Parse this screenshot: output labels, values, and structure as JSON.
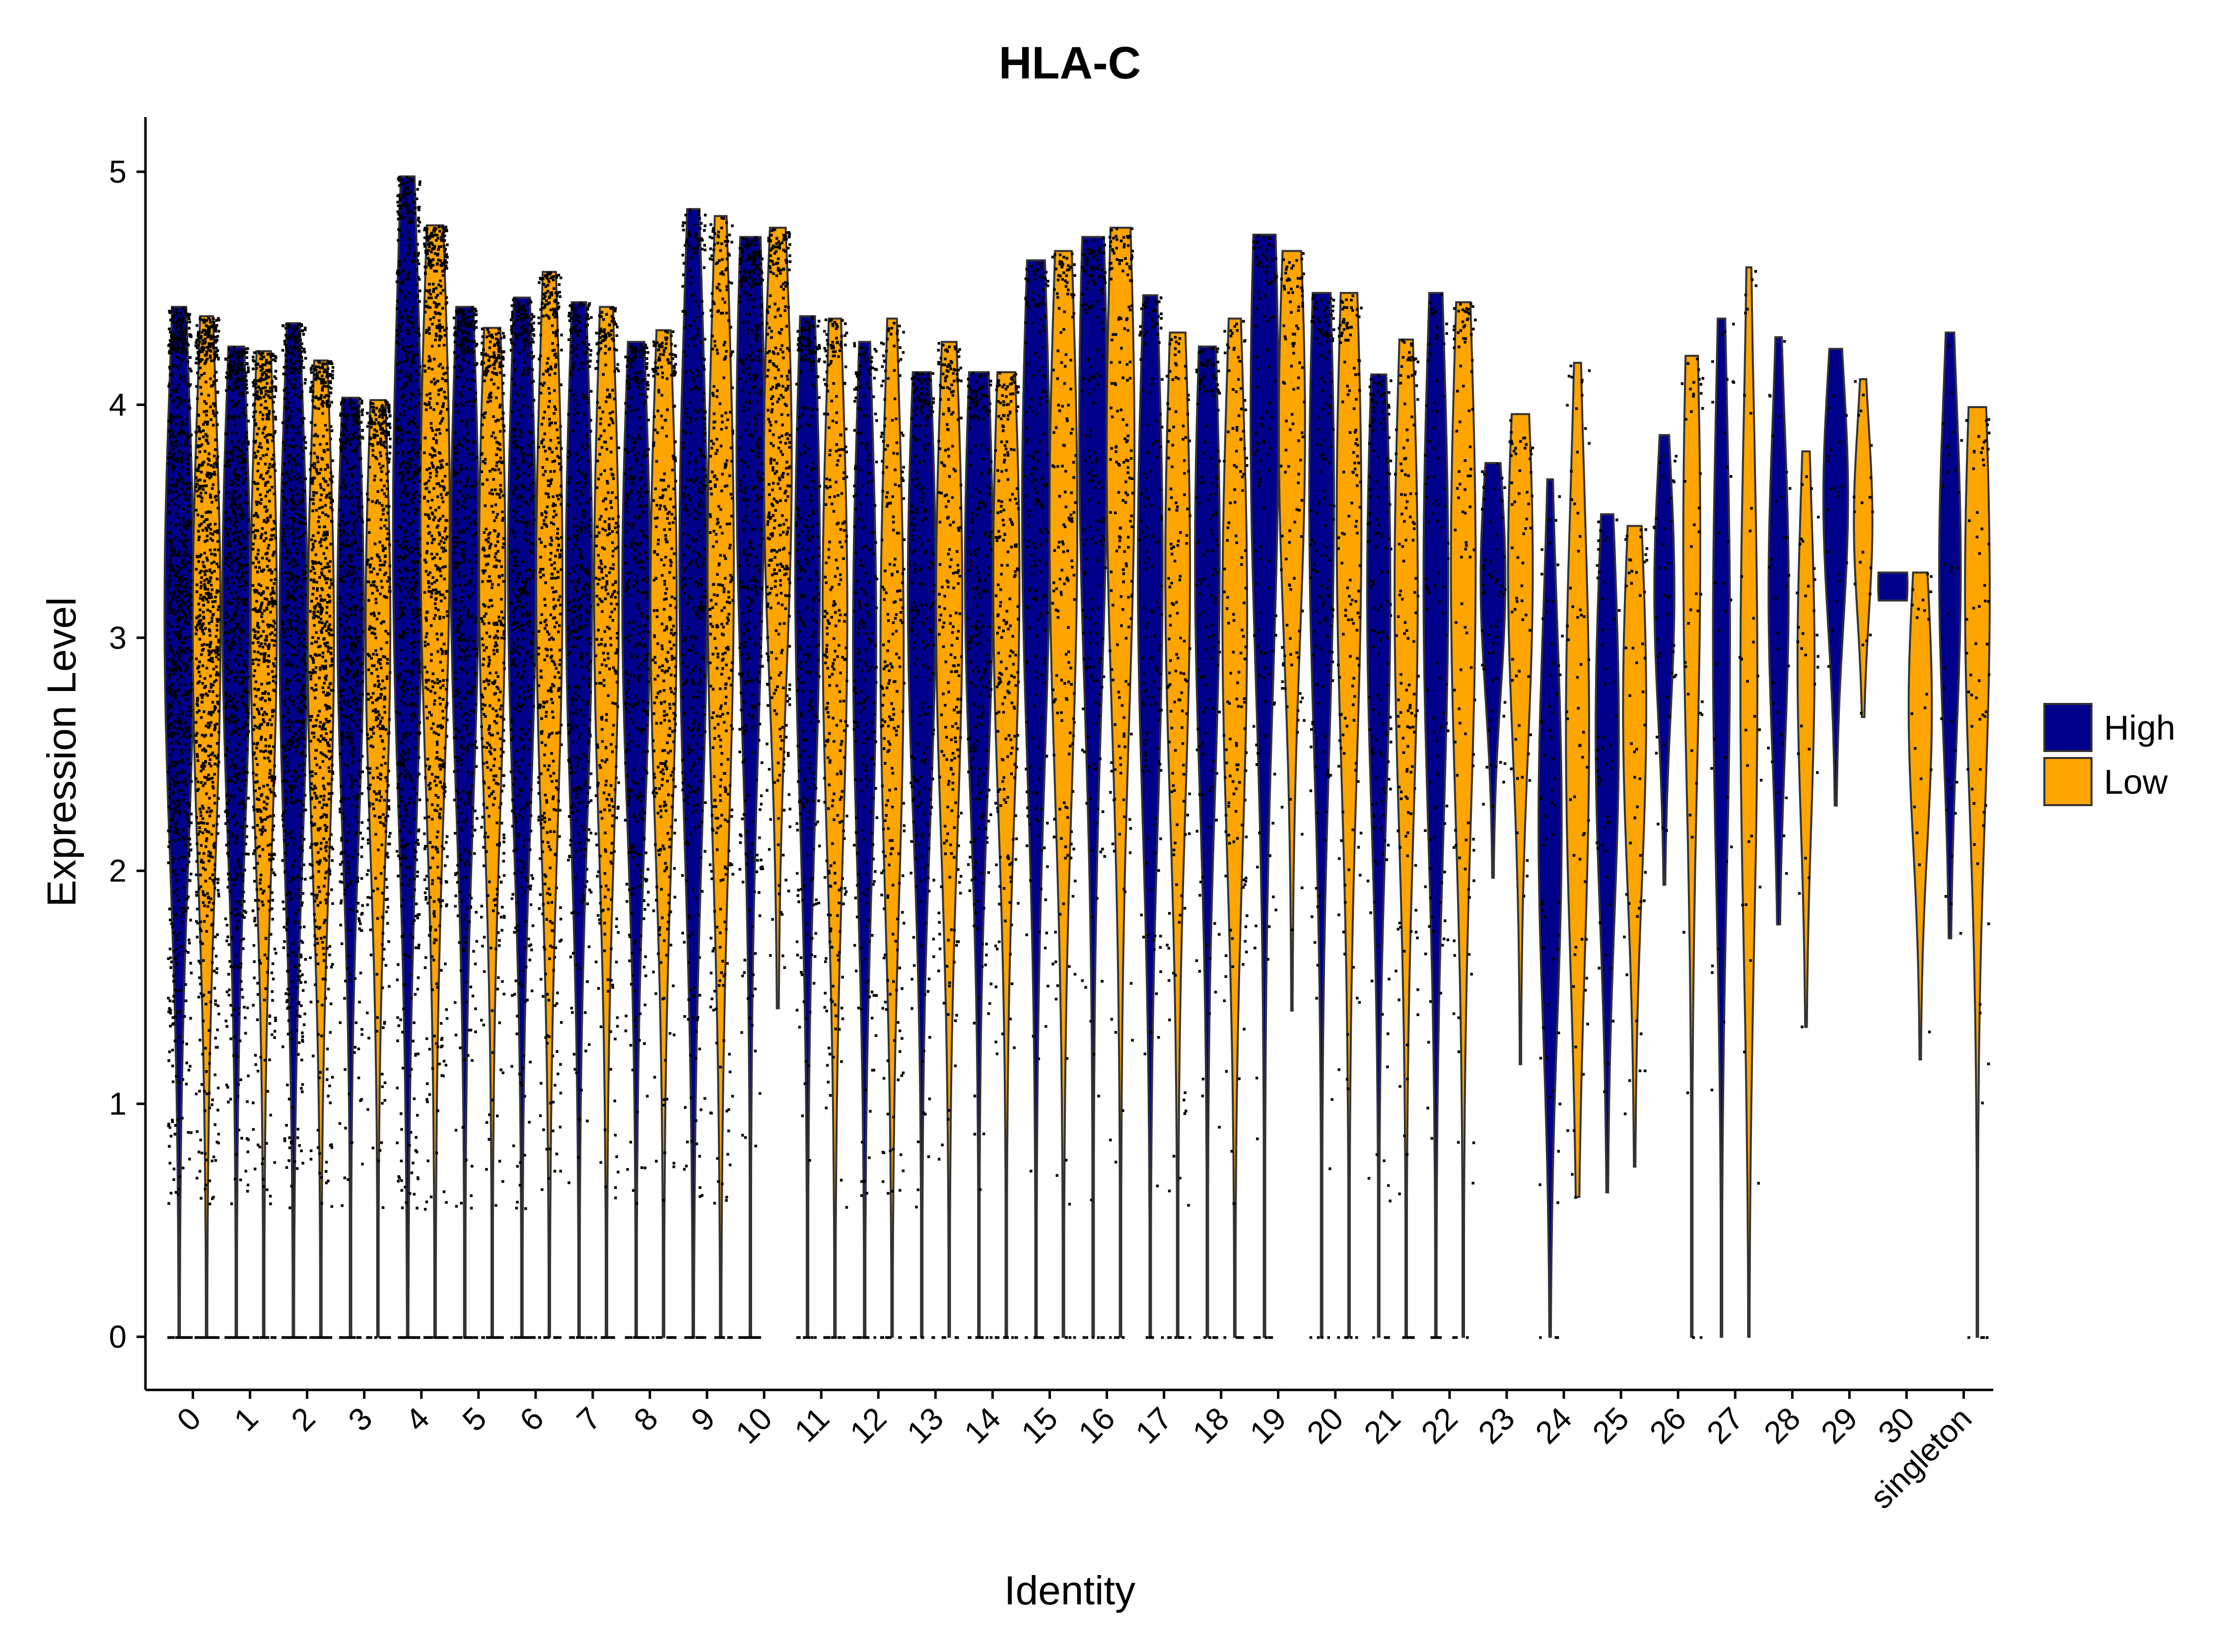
{
  "chart_data": {
    "type": "violin",
    "title": "HLA-C",
    "xlabel": "Identity",
    "ylabel": "Expression Level",
    "ylim": [
      -0.23,
      5.23
    ],
    "yticks": [
      0,
      1,
      2,
      3,
      4,
      5
    ],
    "categories": [
      "0",
      "1",
      "2",
      "3",
      "4",
      "5",
      "6",
      "7",
      "8",
      "9",
      "10",
      "11",
      "12",
      "13",
      "14",
      "15",
      "16",
      "17",
      "18",
      "19",
      "20",
      "21",
      "22",
      "23",
      "24",
      "25",
      "26",
      "27",
      "28",
      "29",
      "30",
      "singleton"
    ],
    "legend": {
      "position": "right",
      "entries": [
        {
          "name": "High",
          "color": "#00008B"
        },
        {
          "name": "Low",
          "color": "#FFA500"
        }
      ]
    },
    "series": [
      {
        "name": "High",
        "color": "#00008B",
        "max": [
          4.42,
          4.25,
          4.35,
          4.03,
          4.98,
          4.42,
          4.46,
          4.44,
          4.27,
          4.84,
          4.72,
          4.38,
          4.27,
          4.14,
          4.14,
          4.62,
          4.72,
          4.47,
          4.25,
          4.73,
          4.48,
          4.13,
          4.48,
          3.75,
          3.68,
          3.53,
          3.87,
          4.37,
          4.29,
          4.24,
          3.28,
          4.31
        ],
        "min": [
          0,
          0,
          0,
          0,
          0,
          0,
          0,
          0,
          0,
          0,
          0,
          0,
          0,
          0,
          0,
          0,
          0,
          0,
          0,
          0,
          0,
          0,
          0,
          1.97,
          0,
          0.62,
          1.94,
          0,
          1.77,
          2.28,
          3.16,
          1.71
        ],
        "center": [
          3.1,
          3.15,
          3.05,
          3.1,
          3.45,
          3.35,
          3.3,
          3.25,
          3.2,
          3.3,
          3.8,
          3.3,
          3.0,
          3.2,
          3.3,
          3.55,
          3.9,
          3.3,
          3.35,
          3.95,
          3.6,
          3.2,
          3.25,
          3.25,
          2.2,
          2.6,
          3.2,
          3.0,
          3.2,
          3.6,
          3.23,
          3.3
        ],
        "width": [
          0.95,
          0.9,
          0.9,
          0.85,
          0.95,
          0.9,
          0.9,
          0.85,
          0.9,
          0.9,
          0.9,
          0.8,
          0.75,
          0.9,
          0.9,
          0.9,
          0.9,
          0.8,
          0.8,
          0.9,
          0.8,
          0.75,
          0.8,
          0.8,
          0.75,
          0.75,
          0.65,
          0.55,
          0.65,
          0.8,
          0.95,
          0.7
        ],
        "has_points": [
          true,
          true,
          true,
          true,
          true,
          true,
          true,
          true,
          true,
          true,
          true,
          true,
          true,
          true,
          true,
          true,
          true,
          true,
          true,
          true,
          true,
          true,
          true,
          true,
          true,
          true,
          true,
          true,
          true,
          true,
          false,
          true
        ],
        "n_points": [
          900,
          700,
          700,
          500,
          700,
          500,
          500,
          400,
          400,
          400,
          400,
          300,
          250,
          250,
          250,
          200,
          200,
          150,
          150,
          120,
          150,
          150,
          100,
          60,
          60,
          50,
          40,
          30,
          30,
          20,
          0,
          30
        ]
      },
      {
        "name": "Low",
        "color": "#FFA500",
        "max": [
          4.38,
          4.23,
          4.19,
          4.02,
          4.77,
          4.33,
          4.57,
          4.42,
          4.32,
          4.81,
          4.76,
          4.37,
          4.37,
          4.27,
          4.14,
          4.66,
          4.76,
          4.31,
          4.37,
          4.66,
          4.48,
          4.28,
          4.44,
          3.96,
          4.18,
          3.48,
          4.21,
          4.59,
          3.8,
          4.11,
          3.28,
          3.99
        ],
        "min": [
          0,
          0,
          0,
          0,
          0,
          0,
          0,
          0,
          0,
          0,
          1.41,
          0,
          0,
          0,
          0,
          0,
          0,
          0,
          0,
          1.4,
          0,
          0,
          0,
          1.17,
          0.6,
          0.73,
          0,
          0,
          1.33,
          2.66,
          1.19,
          0
        ],
        "center": [
          3.05,
          3.1,
          3.0,
          3.05,
          3.5,
          3.3,
          3.25,
          3.2,
          3.15,
          3.3,
          3.75,
          3.1,
          2.95,
          3.15,
          3.25,
          3.5,
          3.8,
          3.3,
          3.1,
          3.9,
          3.5,
          3.2,
          3.3,
          3.3,
          2.6,
          2.7,
          3.4,
          2.8,
          2.9,
          3.5,
          2.7,
          3.2
        ],
        "width": [
          0.9,
          0.85,
          0.85,
          0.8,
          0.95,
          0.85,
          0.85,
          0.8,
          0.85,
          0.85,
          0.9,
          0.8,
          0.75,
          0.85,
          0.85,
          0.9,
          0.9,
          0.8,
          0.8,
          0.85,
          0.8,
          0.75,
          0.8,
          0.8,
          0.75,
          0.75,
          0.55,
          0.55,
          0.55,
          0.6,
          0.75,
          0.8
        ],
        "has_points": [
          true,
          true,
          true,
          true,
          true,
          true,
          true,
          true,
          true,
          true,
          true,
          true,
          true,
          true,
          true,
          true,
          true,
          true,
          true,
          true,
          true,
          true,
          true,
          true,
          true,
          true,
          true,
          true,
          true,
          true,
          true,
          true
        ],
        "n_points": [
          800,
          650,
          650,
          450,
          650,
          450,
          450,
          350,
          350,
          350,
          350,
          280,
          230,
          230,
          230,
          180,
          180,
          140,
          140,
          110,
          140,
          140,
          100,
          60,
          60,
          50,
          40,
          30,
          30,
          20,
          20,
          60
        ]
      }
    ]
  }
}
